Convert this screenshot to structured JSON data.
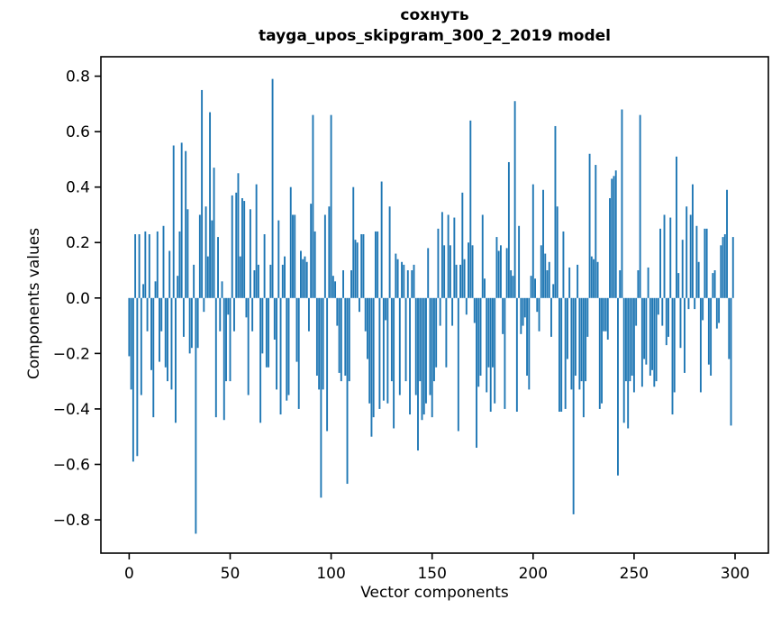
{
  "chart_data": {
    "type": "bar",
    "title_line1": "сохнуть",
    "title_line2": "tayga_upos_skipgram_300_2_2019 model",
    "xlabel": "Vector components",
    "ylabel": "Components values",
    "bar_color": "#1f77b4",
    "axis_color": "#000000",
    "background_color": "#ffffff",
    "n_components": 300,
    "xticks": [
      0,
      50,
      100,
      150,
      200,
      250,
      300
    ],
    "yticks": [
      0.8,
      0.6,
      0.4,
      0.2,
      0.0,
      -0.2,
      -0.4,
      -0.6,
      -0.8
    ],
    "xlim": [
      -14,
      316.5
    ],
    "ylim": [
      -0.92,
      0.87
    ],
    "grid": false,
    "legend": null,
    "values": [
      -0.21,
      -0.33,
      -0.59,
      0.23,
      -0.57,
      0.23,
      -0.35,
      0.05,
      0.24,
      -0.12,
      0.23,
      -0.26,
      -0.43,
      0.06,
      0.24,
      -0.23,
      -0.12,
      0.26,
      -0.25,
      -0.3,
      0.17,
      -0.33,
      0.55,
      -0.45,
      0.08,
      0.24,
      0.56,
      -0.14,
      0.53,
      0.32,
      -0.2,
      -0.18,
      0.12,
      -0.85,
      -0.18,
      0.3,
      0.75,
      -0.05,
      0.33,
      0.15,
      0.67,
      0.28,
      0.47,
      -0.43,
      0.22,
      -0.12,
      0.06,
      -0.44,
      -0.3,
      -0.06,
      -0.3,
      0.37,
      -0.12,
      0.38,
      0.45,
      0.15,
      0.36,
      0.35,
      -0.07,
      -0.35,
      0.32,
      -0.12,
      0.1,
      0.41,
      0.12,
      -0.45,
      -0.2,
      0.23,
      -0.25,
      -0.25,
      0.12,
      0.79,
      -0.15,
      -0.33,
      0.28,
      -0.42,
      0.12,
      0.15,
      -0.37,
      -0.35,
      0.4,
      0.3,
      0.3,
      -0.23,
      -0.4,
      0.17,
      0.14,
      0.15,
      0.13,
      -0.12,
      0.34,
      0.66,
      0.24,
      -0.28,
      -0.33,
      -0.72,
      -0.33,
      0.3,
      -0.48,
      0.33,
      0.66,
      0.08,
      0.06,
      -0.1,
      -0.27,
      -0.3,
      0.1,
      -0.28,
      -0.67,
      -0.3,
      0.1,
      0.4,
      0.21,
      0.2,
      -0.05,
      0.23,
      0.23,
      -0.12,
      -0.22,
      -0.38,
      -0.5,
      -0.43,
      0.24,
      0.24,
      -0.4,
      0.42,
      -0.37,
      -0.08,
      -0.38,
      0.33,
      -0.3,
      -0.47,
      0.16,
      0.14,
      -0.35,
      0.13,
      0.12,
      -0.3,
      0.1,
      -0.42,
      0.1,
      0.12,
      -0.35,
      -0.55,
      -0.3,
      -0.44,
      -0.42,
      -0.38,
      0.18,
      -0.35,
      -0.43,
      -0.3,
      -0.25,
      0.25,
      -0.1,
      0.31,
      0.19,
      -0.25,
      0.3,
      0.19,
      -0.1,
      0.29,
      0.12,
      -0.48,
      0.12,
      0.38,
      0.14,
      -0.06,
      0.2,
      0.64,
      0.19,
      -0.09,
      -0.54,
      -0.32,
      -0.28,
      0.3,
      0.07,
      -0.34,
      -0.25,
      -0.41,
      -0.25,
      -0.38,
      0.22,
      0.17,
      0.19,
      -0.13,
      -0.4,
      0.18,
      0.49,
      0.1,
      0.08,
      0.71,
      -0.41,
      0.26,
      -0.13,
      -0.1,
      -0.07,
      -0.28,
      -0.33,
      0.08,
      0.41,
      0.07,
      -0.05,
      -0.12,
      0.19,
      0.39,
      0.16,
      0.1,
      0.13,
      -0.14,
      0.05,
      0.62,
      0.33,
      -0.41,
      -0.41,
      0.24,
      -0.4,
      -0.22,
      0.11,
      -0.33,
      -0.78,
      -0.28,
      0.12,
      -0.33,
      -0.3,
      -0.43,
      -0.3,
      -0.14,
      0.52,
      0.15,
      0.14,
      0.48,
      0.13,
      -0.4,
      -0.38,
      -0.12,
      -0.12,
      -0.15,
      0.36,
      0.43,
      0.44,
      0.46,
      -0.64,
      0.1,
      0.68,
      -0.45,
      -0.3,
      -0.47,
      -0.3,
      -0.28,
      -0.34,
      -0.1,
      0.1,
      0.66,
      -0.32,
      -0.22,
      -0.24,
      0.11,
      -0.28,
      -0.26,
      -0.32,
      -0.3,
      -0.06,
      0.25,
      -0.1,
      0.3,
      -0.17,
      -0.14,
      0.29,
      -0.42,
      -0.34,
      0.51,
      0.09,
      -0.18,
      0.21,
      -0.27,
      0.33,
      -0.04,
      0.3,
      0.41,
      -0.04,
      0.26,
      0.13,
      -0.34,
      -0.08,
      0.25,
      0.25,
      -0.24,
      -0.28,
      0.09,
      0.1,
      -0.11,
      -0.09,
      0.19,
      0.22,
      0.23,
      0.39,
      -0.22,
      -0.46,
      0.22
    ]
  }
}
